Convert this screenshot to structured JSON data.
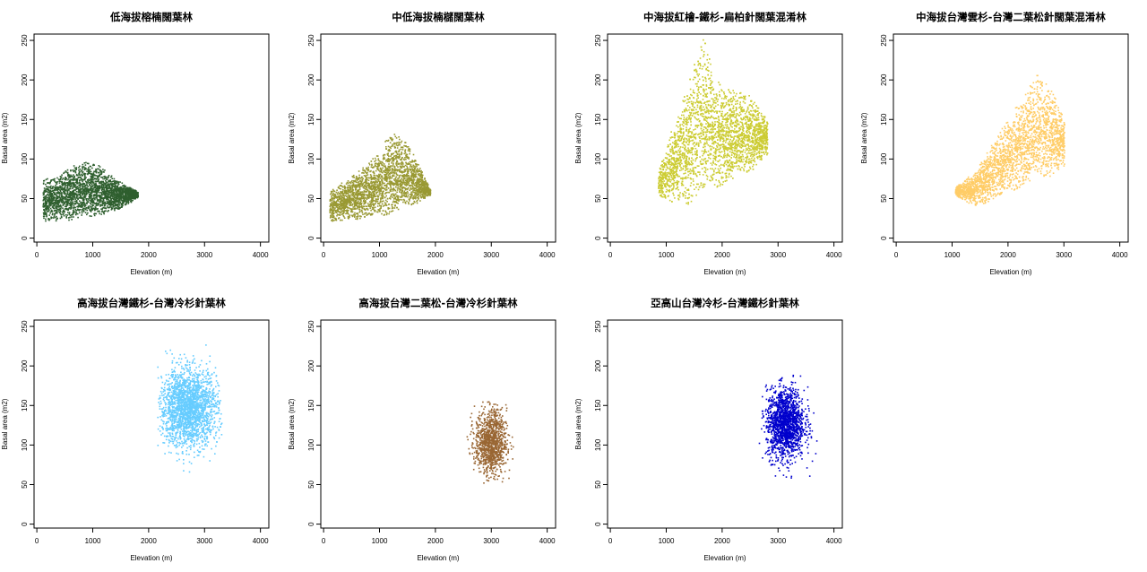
{
  "chart_data": [
    {
      "type": "scatter",
      "title": "低海拔榕楠闊葉林",
      "xlabel": "Elevation (m)",
      "ylabel": "Basal area (m2)",
      "xlim": [
        -50,
        4150
      ],
      "ylim": [
        -5,
        258
      ],
      "xticks": [
        0,
        1000,
        2000,
        3000,
        4000
      ],
      "yticks": [
        0,
        50,
        100,
        150,
        200,
        250
      ],
      "color": "#2f5f2f",
      "n_points": 2600,
      "cloud": {
        "xmin": 100,
        "xmax": 1800,
        "envelope": [
          [
            100,
            22,
            75
          ],
          [
            300,
            22,
            78
          ],
          [
            600,
            23,
            90
          ],
          [
            800,
            25,
            100
          ],
          [
            1100,
            30,
            93
          ],
          [
            1400,
            35,
            75
          ],
          [
            1650,
            45,
            65
          ],
          [
            1800,
            52,
            60
          ]
        ]
      }
    },
    {
      "type": "scatter",
      "title": "中低海拔楠櫧闊葉林",
      "xlabel": "Elevation (m)",
      "ylabel": "Basal area (m2)",
      "xlim": [
        -50,
        4150
      ],
      "ylim": [
        -5,
        258
      ],
      "xticks": [
        0,
        1000,
        2000,
        3000,
        4000
      ],
      "yticks": [
        0,
        50,
        100,
        150,
        200,
        250
      ],
      "color": "#999933",
      "n_points": 2600,
      "cloud": {
        "xmin": 100,
        "xmax": 1900,
        "envelope": [
          [
            100,
            22,
            60
          ],
          [
            400,
            23,
            75
          ],
          [
            700,
            25,
            90
          ],
          [
            1000,
            28,
            110
          ],
          [
            1200,
            32,
            140
          ],
          [
            1500,
            40,
            120
          ],
          [
            1750,
            48,
            85
          ],
          [
            1900,
            55,
            62
          ]
        ]
      }
    },
    {
      "type": "scatter",
      "title": "中海拔紅檜-鐵杉-扁柏針闊葉混淆林",
      "xlabel": "Elevation (m)",
      "ylabel": "Basal area (m2)",
      "xlim": [
        -50,
        4150
      ],
      "ylim": [
        -5,
        258
      ],
      "xticks": [
        0,
        1000,
        2000,
        3000,
        4000
      ],
      "yticks": [
        0,
        50,
        100,
        150,
        200,
        250
      ],
      "color": "#cccc33",
      "n_points": 3200,
      "cloud": {
        "xmin": 850,
        "xmax": 2800,
        "envelope": [
          [
            850,
            55,
            85
          ],
          [
            1100,
            45,
            140
          ],
          [
            1400,
            42,
            200
          ],
          [
            1650,
            55,
            255
          ],
          [
            1900,
            65,
            200
          ],
          [
            2200,
            75,
            190
          ],
          [
            2500,
            85,
            180
          ],
          [
            2800,
            105,
            150
          ]
        ]
      }
    },
    {
      "type": "scatter",
      "title": "中海拔台灣雲杉-台灣二葉松針闊葉混淆林",
      "xlabel": "Elevation (m)",
      "ylabel": "Basal area (m2)",
      "xlim": [
        -50,
        4150
      ],
      "ylim": [
        -5,
        258
      ],
      "xticks": [
        0,
        1000,
        2000,
        3000,
        4000
      ],
      "yticks": [
        0,
        50,
        100,
        150,
        200,
        250
      ],
      "color": "#ffcc66",
      "n_points": 2400,
      "cloud": {
        "xmin": 1050,
        "xmax": 3000,
        "envelope": [
          [
            1050,
            55,
            65
          ],
          [
            1400,
            40,
            85
          ],
          [
            1800,
            50,
            130
          ],
          [
            2200,
            65,
            175
          ],
          [
            2500,
            75,
            210
          ],
          [
            2800,
            80,
            185
          ],
          [
            3000,
            90,
            150
          ]
        ]
      }
    },
    {
      "type": "scatter",
      "title": "高海拔台灣鐵杉-台灣冷杉針葉林",
      "xlabel": "Elevation (m)",
      "ylabel": "Basal area (m2)",
      "xlim": [
        -50,
        4150
      ],
      "ylim": [
        -5,
        258
      ],
      "xticks": [
        0,
        1000,
        2000,
        3000,
        4000
      ],
      "yticks": [
        0,
        50,
        100,
        150,
        200,
        250
      ],
      "color": "#66ccff",
      "n_points": 2200,
      "cloud": {
        "center": [
          2700,
          148
        ],
        "spread": [
          260,
          24
        ],
        "range_x": [
          2150,
          3300
        ],
        "range_y": [
          52,
          230
        ]
      }
    },
    {
      "type": "scatter",
      "title": "高海拔台灣二葉松-台灣冷杉針葉林",
      "xlabel": "Elevation (m)",
      "ylabel": "Basal area (m2)",
      "xlim": [
        -50,
        4150
      ],
      "ylim": [
        -5,
        258
      ],
      "xticks": [
        0,
        1000,
        2000,
        3000,
        4000
      ],
      "yticks": [
        0,
        50,
        100,
        150,
        200,
        250
      ],
      "color": "#996633",
      "n_points": 1100,
      "cloud": {
        "center": [
          2980,
          104
        ],
        "spread": [
          140,
          20
        ],
        "range_x": [
          2550,
          3400
        ],
        "range_y": [
          50,
          160
        ]
      }
    },
    {
      "type": "scatter",
      "title": "亞高山台灣冷杉-台灣鐵杉針葉林",
      "xlabel": "Elevation (m)",
      "ylabel": "Basal area (m2)",
      "xlim": [
        -50,
        4150
      ],
      "ylim": [
        -5,
        258
      ],
      "xticks": [
        0,
        1000,
        2000,
        3000,
        4000
      ],
      "yticks": [
        0,
        50,
        100,
        150,
        200,
        250
      ],
      "color": "#0000cc",
      "n_points": 1600,
      "cloud": {
        "center": [
          3120,
          128
        ],
        "spread": [
          170,
          22
        ],
        "range_x": [
          2650,
          3800
        ],
        "range_y": [
          55,
          195
        ]
      }
    }
  ]
}
